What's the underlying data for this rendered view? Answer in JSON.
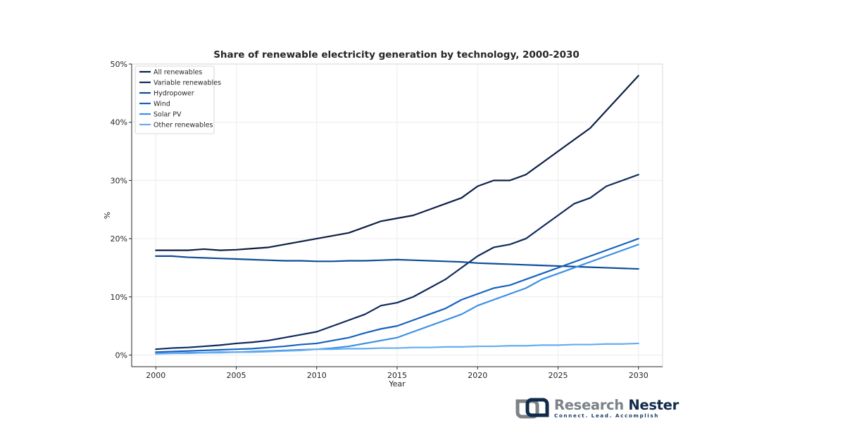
{
  "chart_data": {
    "type": "line",
    "title": "Share of renewable electricity generation by technology, 2000-2030",
    "xlabel": "Year",
    "ylabel": "%",
    "xlim": [
      1998.5,
      2031.5
    ],
    "ylim": [
      -2,
      50
    ],
    "x_ticks": [
      2000,
      2005,
      2010,
      2015,
      2020,
      2025,
      2030
    ],
    "y_ticks": [
      0,
      10,
      20,
      30,
      40,
      50
    ],
    "y_tick_suffix": "%",
    "grid": true,
    "legend": "top-left",
    "x": [
      2000,
      2001,
      2002,
      2003,
      2004,
      2005,
      2006,
      2007,
      2008,
      2009,
      2010,
      2011,
      2012,
      2013,
      2014,
      2015,
      2016,
      2017,
      2018,
      2019,
      2020,
      2021,
      2022,
      2023,
      2024,
      2025,
      2026,
      2027,
      2028,
      2029,
      2030
    ],
    "series": [
      {
        "name": "All renewables",
        "color": "#0d1f45",
        "values": [
          18,
          18,
          18,
          18.2,
          18,
          18.1,
          18.3,
          18.5,
          19,
          19.5,
          20,
          20.5,
          21,
          22,
          23,
          23.5,
          24,
          25,
          26,
          27,
          29,
          30,
          30,
          31,
          33,
          35,
          37,
          39,
          42,
          45,
          48
        ]
      },
      {
        "name": "Variable renewables",
        "color": "#0e2a5c",
        "values": [
          1,
          1.2,
          1.3,
          1.5,
          1.7,
          2,
          2.2,
          2.5,
          3,
          3.5,
          4,
          5,
          6,
          7,
          8.5,
          9,
          10,
          11.5,
          13,
          15,
          17,
          18.5,
          19,
          20,
          22,
          24,
          26,
          27,
          29,
          30,
          31
        ]
      },
      {
        "name": "Hydropower",
        "color": "#0f4c96",
        "values": [
          17,
          17,
          16.8,
          16.7,
          16.6,
          16.5,
          16.4,
          16.3,
          16.2,
          16.2,
          16.1,
          16.1,
          16.2,
          16.2,
          16.3,
          16.4,
          16.3,
          16.2,
          16.1,
          16,
          15.8,
          15.7,
          15.6,
          15.5,
          15.4,
          15.3,
          15.2,
          15.1,
          15,
          14.9,
          14.8
        ]
      },
      {
        "name": "Wind",
        "color": "#1662c0",
        "values": [
          0.5,
          0.6,
          0.7,
          0.8,
          0.9,
          1,
          1.1,
          1.3,
          1.5,
          1.8,
          2,
          2.5,
          3,
          3.8,
          4.5,
          5,
          6,
          7,
          8,
          9.5,
          10.5,
          11.5,
          12,
          13,
          14,
          15,
          16,
          17,
          18,
          19,
          20
        ]
      },
      {
        "name": "Solar PV",
        "color": "#3b8fe4",
        "values": [
          0.3,
          0.3,
          0.4,
          0.4,
          0.5,
          0.5,
          0.6,
          0.7,
          0.8,
          0.9,
          1,
          1.2,
          1.5,
          2,
          2.5,
          3,
          4,
          5,
          6,
          7,
          8.5,
          9.5,
          10.5,
          11.5,
          13,
          14,
          15,
          16,
          17,
          18,
          19
        ]
      },
      {
        "name": "Other renewables",
        "color": "#64adf0",
        "values": [
          0.2,
          0.3,
          0.3,
          0.4,
          0.4,
          0.5,
          0.5,
          0.6,
          0.7,
          0.8,
          1,
          1,
          1.1,
          1.1,
          1.2,
          1.2,
          1.3,
          1.3,
          1.4,
          1.4,
          1.5,
          1.5,
          1.6,
          1.6,
          1.7,
          1.7,
          1.8,
          1.8,
          1.9,
          1.9,
          2
        ]
      }
    ]
  },
  "logo": {
    "name_part1": "Research",
    "name_part2": "Nester",
    "tagline": "Connect. Lead. Accomplish"
  }
}
